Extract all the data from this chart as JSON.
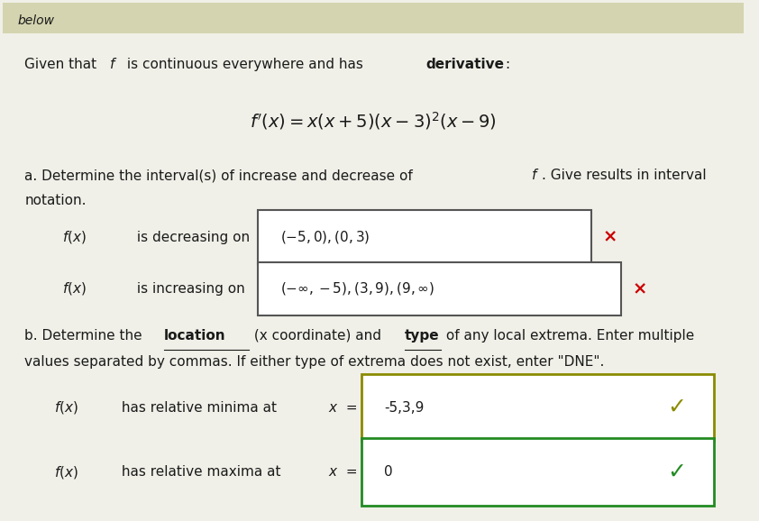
{
  "background_color": "#f0f0e8",
  "top_banner_color": "#d4d4b0",
  "top_banner_text": "below",
  "formula": "f'(x) = x(x+5)(x-3)^2(x-9)",
  "decreasing_box": "(-5,0),(0,3)",
  "increasing_box": "(-∞,-5),(3,9),(9,∞)",
  "minima_box": "-5,3,9",
  "minima_check_color": "#8B8B00",
  "maxima_box": "0",
  "maxima_check_color": "#228B22",
  "text_color": "#1a1a1a",
  "box_border_color": "#555555",
  "red_x_color": "#cc0000",
  "correct_box_border_minima": "#8B8B00",
  "correct_box_border_maxima": "#228B22"
}
